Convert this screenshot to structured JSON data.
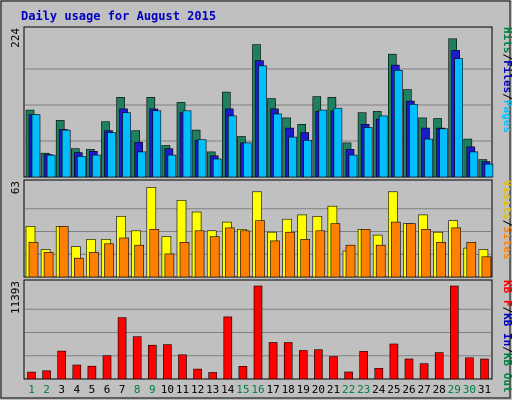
{
  "chart_data": {
    "type": "bar",
    "title": "Daily usage for August 2015",
    "categories": [
      "1",
      "2",
      "3",
      "4",
      "5",
      "6",
      "7",
      "8",
      "9",
      "10",
      "11",
      "12",
      "13",
      "14",
      "15",
      "16",
      "17",
      "18",
      "19",
      "20",
      "21",
      "22",
      "23",
      "24",
      "25",
      "26",
      "27",
      "28",
      "29",
      "30",
      "31"
    ],
    "weekend_days": [
      "1",
      "2",
      "8",
      "9",
      "15",
      "16",
      "22",
      "23",
      "29",
      "30"
    ],
    "panels": [
      {
        "id": "top",
        "max_label": "224",
        "ymax": 224,
        "side_labels": [
          {
            "text": "Hits",
            "color": "#008040"
          },
          {
            "text": "/",
            "color": "#000000"
          },
          {
            "text": "Files",
            "color": "#0000c0"
          },
          {
            "text": "/",
            "color": "#000000"
          },
          {
            "text": "Pages",
            "color": "#00c0ff"
          }
        ],
        "series": [
          {
            "name": "Hits",
            "color": "#1e8060",
            "values": [
              104,
              37,
              88,
              44,
              43,
              86,
              124,
              72,
              124,
              49,
              116,
              73,
              39,
              132,
              63,
              206,
              122,
              92,
              82,
              125,
              124,
              53,
              100,
              102,
              191,
              136,
              92,
              91,
              215,
              59,
              27
            ]
          },
          {
            "name": "Files",
            "color": "#1b1bc8",
            "values": [
              97,
              35,
              74,
              38,
              40,
              72,
              106,
              54,
              106,
              44,
              100,
              57,
              33,
              106,
              53,
              181,
              106,
              76,
              69,
              102,
              103,
              43,
              82,
              90,
              174,
              118,
              76,
              76,
              197,
              47,
              24
            ]
          },
          {
            "name": "Pages",
            "color": "#00bfff",
            "values": [
              97,
              34,
              73,
              32,
              34,
              69,
              100,
              39,
              103,
              34,
              103,
              58,
              28,
              95,
              53,
              173,
              98,
              62,
              57,
              104,
              107,
              34,
              77,
              95,
              166,
              113,
              59,
              75,
              184,
              39,
              20
            ]
          }
        ]
      },
      {
        "id": "middle",
        "max_label": "63",
        "ymax": 63,
        "side_labels": [
          {
            "text": "Visits",
            "color": "#e0c000"
          },
          {
            "text": "/",
            "color": "#000000"
          },
          {
            "text": "Sites",
            "color": "#ff8000"
          }
        ],
        "series": [
          {
            "name": "Visits",
            "color": "#ffff00",
            "values": [
              35,
              19,
              35,
              21,
              26,
              26,
              42,
              32,
              62,
              28,
              53,
              45,
              32,
              38,
              33,
              59,
              31,
              40,
              43,
              42,
              49,
              18,
              33,
              29,
              59,
              37,
              43,
              31,
              39,
              20,
              19
            ]
          },
          {
            "name": "Sites",
            "color": "#ff8000",
            "values": [
              24,
              17,
              35,
              13,
              17,
              23,
              27,
              22,
              33,
              16,
              24,
              32,
              28,
              34,
              32,
              39,
              25,
              31,
              26,
              32,
              37,
              22,
              33,
              22,
              38,
              37,
              33,
              24,
              34,
              24,
              14
            ]
          }
        ]
      },
      {
        "id": "bottom",
        "max_label": "11393",
        "ymax": 11393,
        "side_labels": [
          {
            "text": "KB F",
            "color": "#ff0000"
          },
          {
            "text": "/",
            "color": "#000000"
          },
          {
            "text": "KB In",
            "color": "#0000c0"
          },
          {
            "text": "/",
            "color": "#000000"
          },
          {
            "text": "KB Out",
            "color": "#008040"
          }
        ],
        "series": [
          {
            "name": "KB F",
            "color": "#ff0000",
            "values": [
              840,
              1000,
              3420,
              1710,
              1570,
              2860,
              7520,
              5180,
              4140,
              4210,
              2960,
              1210,
              800,
              7610,
              1550,
              11393,
              4470,
              4470,
              3490,
              3590,
              2750,
              860,
              3380,
              1310,
              4290,
              2450,
              1880,
              3240,
              11393,
              2600,
              2450
            ]
          }
        ]
      }
    ]
  }
}
